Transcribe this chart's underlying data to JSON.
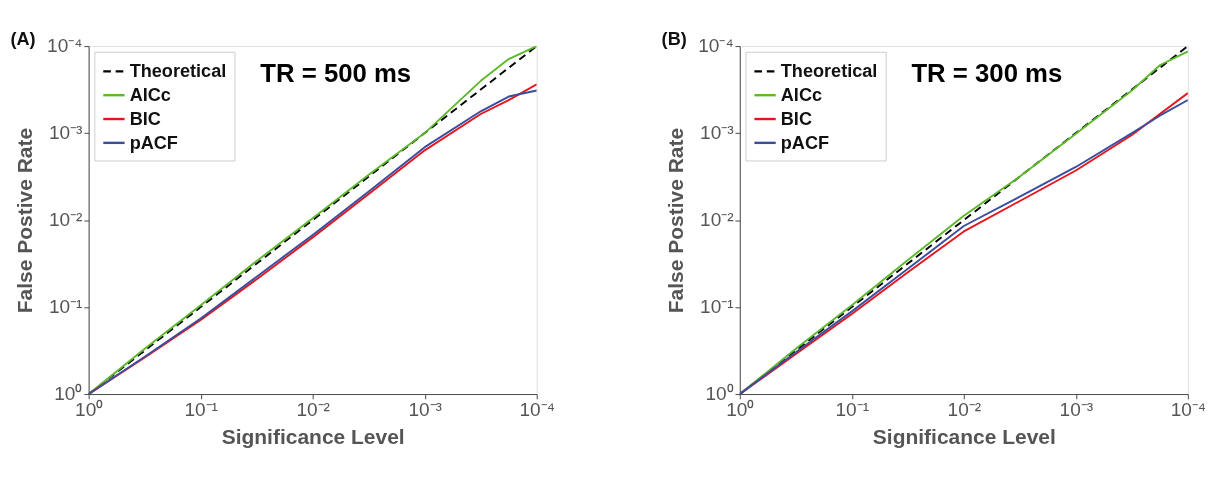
{
  "chart_data": [
    {
      "type": "line",
      "xlabel": "Significance Level",
      "ylabel": "False Postive Rate",
      "annotations": [
        "(A)",
        "TR = 500 ms"
      ],
      "log": "xy",
      "grid": false,
      "legend": "top left",
      "x": [
        1,
        0.316,
        0.1,
        0.0316,
        0.01,
        0.00316,
        0.001,
        0.000316,
        0.000178,
        0.0001
      ],
      "xlim": [
        1,
        0.0001
      ],
      "ylim": [
        1,
        0.0001
      ],
      "xticks": [
        {
          "value": 1,
          "label": "10⁰"
        },
        {
          "value": 0.1,
          "label": "10⁻¹"
        },
        {
          "value": 0.01,
          "label": "10⁻²"
        },
        {
          "value": 0.001,
          "label": "10⁻³"
        },
        {
          "value": 0.0001,
          "label": "10⁻⁴"
        }
      ],
      "yticks": [
        {
          "value": 1,
          "label": "10⁰"
        },
        {
          "value": 0.1,
          "label": "10⁻¹"
        },
        {
          "value": 0.01,
          "label": "10⁻²"
        },
        {
          "value": 0.001,
          "label": "10⁻³"
        },
        {
          "value": 0.0001,
          "label": "10⁻⁴"
        }
      ],
      "series": [
        {
          "name": "Theoretical",
          "color": "#000000",
          "line_style": "dashed",
          "values": [
            1,
            0.316,
            0.1,
            0.0316,
            0.01,
            0.00316,
            0.001,
            0.000316,
            0.000178,
            0.0001
          ]
        },
        {
          "name": "AICc",
          "color": "#5db82a",
          "line_style": "solid",
          "values": [
            1,
            0.302,
            0.0955,
            0.0295,
            0.00955,
            0.00302,
            0.001,
            0.000251,
            0.000141,
            0.0001
          ]
        },
        {
          "name": "BIC",
          "color": "#e8141b",
          "line_style": "solid",
          "values": [
            1,
            0.38,
            0.141,
            0.0479,
            0.0158,
            0.00501,
            0.00158,
            0.000603,
            0.000417,
            0.000275
          ]
        },
        {
          "name": "pACF",
          "color": "#3a4ea0",
          "line_style": "solid",
          "values": [
            1,
            0.372,
            0.135,
            0.0447,
            0.0148,
            0.00468,
            0.00145,
            0.000562,
            0.00038,
            0.000324
          ]
        }
      ]
    },
    {
      "type": "line",
      "xlabel": "Significance Level",
      "ylabel": "False Postive Rate",
      "annotations": [
        "(B)",
        "TR = 300 ms"
      ],
      "log": "xy",
      "grid": false,
      "legend": "top left",
      "x": [
        1,
        0.316,
        0.1,
        0.0316,
        0.01,
        0.00316,
        0.001,
        0.000316,
        0.000178,
        0.0001
      ],
      "xlim": [
        1,
        0.0001
      ],
      "ylim": [
        1,
        0.0001
      ],
      "xticks": [
        {
          "value": 1,
          "label": "10⁰"
        },
        {
          "value": 0.1,
          "label": "10⁻¹"
        },
        {
          "value": 0.01,
          "label": "10⁻²"
        },
        {
          "value": 0.001,
          "label": "10⁻³"
        },
        {
          "value": 0.0001,
          "label": "10⁻⁴"
        }
      ],
      "yticks": [
        {
          "value": 1,
          "label": "10⁰"
        },
        {
          "value": 0.1,
          "label": "10⁻¹"
        },
        {
          "value": 0.01,
          "label": "10⁻²"
        },
        {
          "value": 0.001,
          "label": "10⁻³"
        },
        {
          "value": 0.0001,
          "label": "10⁻⁴"
        }
      ],
      "series": [
        {
          "name": "Theoretical",
          "color": "#000000",
          "line_style": "dashed",
          "values": [
            1,
            0.316,
            0.1,
            0.0316,
            0.01,
            0.00316,
            0.001,
            0.000316,
            0.000178,
            0.0001
          ]
        },
        {
          "name": "AICc",
          "color": "#5db82a",
          "line_style": "solid",
          "values": [
            1,
            0.302,
            0.0955,
            0.0288,
            0.00891,
            0.00316,
            0.00102,
            0.000324,
            0.000166,
            0.000115
          ]
        },
        {
          "name": "BIC",
          "color": "#e8141b",
          "line_style": "solid",
          "values": [
            1,
            0.347,
            0.12,
            0.0398,
            0.0135,
            0.00603,
            0.00269,
            0.00105,
            0.000603,
            0.000347
          ]
        },
        {
          "name": "pACF",
          "color": "#3a4ea0",
          "line_style": "solid",
          "values": [
            1,
            0.331,
            0.112,
            0.0363,
            0.0117,
            0.00537,
            0.00245,
            0.001,
            0.000631,
            0.000417
          ]
        }
      ]
    }
  ]
}
